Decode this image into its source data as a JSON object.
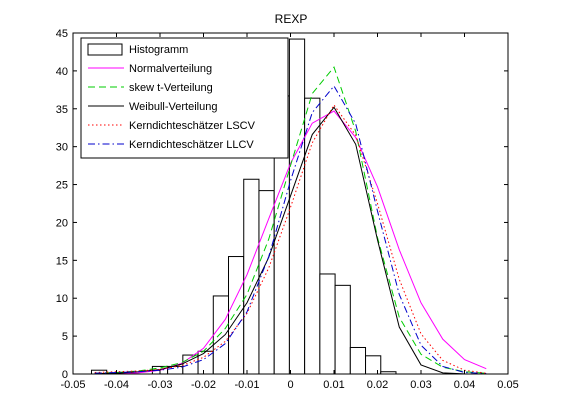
{
  "chart_data": {
    "type": "bar",
    "title": "REXP",
    "xlabel": "",
    "ylabel": "",
    "xlim": [
      -0.05,
      0.05
    ],
    "ylim": [
      0,
      45
    ],
    "xticks": [
      -0.05,
      -0.04,
      -0.03,
      -0.02,
      -0.01,
      0,
      0.01,
      0.02,
      0.03,
      0.04,
      0.05
    ],
    "xtick_labels": [
      "-0.05",
      "-0.04",
      "-0.03",
      "-0.02",
      "-0.01",
      "0",
      "0.01",
      "0.02",
      "0.03",
      "0.04",
      "0.05"
    ],
    "yticks": [
      0,
      5,
      10,
      15,
      20,
      25,
      30,
      35,
      40,
      45
    ],
    "ytick_labels": [
      "0",
      "5",
      "10",
      "15",
      "20",
      "25",
      "30",
      "35",
      "40",
      "45"
    ],
    "grid": false,
    "legend_position": "top-left",
    "histogram": {
      "name": "Histogramm",
      "bin_width": 0.0035,
      "bin_centers": [
        -0.0475,
        -0.044,
        -0.0405,
        -0.037,
        -0.0335,
        -0.03,
        -0.0265,
        -0.023,
        -0.0195,
        -0.016,
        -0.0125,
        -0.009,
        -0.0055,
        -0.002,
        0.0015,
        0.005,
        0.0085,
        0.012,
        0.0155,
        0.019,
        0.0225,
        0.026,
        0.0295,
        0.033,
        0.0365,
        0.04,
        0.0435
      ],
      "values": [
        0,
        0.5,
        0,
        0,
        0,
        1,
        1,
        2.5,
        3,
        10.3,
        15.5,
        25.7,
        24.2,
        36.7,
        44.2,
        36.4,
        13.2,
        11.7,
        3.5,
        2.4,
        0.3,
        0,
        0,
        0,
        0,
        0,
        0
      ]
    },
    "series": [
      {
        "name": "Normalverteilung",
        "style": "solid",
        "color": "#ff00ff",
        "x": [
          -0.045,
          -0.04,
          -0.035,
          -0.03,
          -0.025,
          -0.02,
          -0.015,
          -0.01,
          -0.005,
          0,
          0.005,
          0.01,
          0.015,
          0.02,
          0.025,
          0.03,
          0.035,
          0.04,
          0.045
        ],
        "y": [
          0.01,
          0.04,
          0.15,
          0.5,
          1.4,
          3.4,
          7.2,
          13.1,
          20.5,
          27.8,
          33.1,
          34.7,
          31.2,
          24.7,
          16.4,
          9.4,
          4.6,
          1.9,
          0.7
        ]
      },
      {
        "name": "skew t-Verteilung",
        "style": "dashed",
        "color": "#00cc00",
        "x": [
          -0.045,
          -0.04,
          -0.035,
          -0.03,
          -0.025,
          -0.02,
          -0.015,
          -0.01,
          -0.005,
          0,
          0.005,
          0.01,
          0.015,
          0.02,
          0.025,
          0.03,
          0.035,
          0.04,
          0.045
        ],
        "y": [
          0.1,
          0.2,
          0.4,
          0.8,
          1.5,
          3.0,
          6.0,
          10.5,
          17.8,
          27.5,
          37.0,
          40.5,
          32.0,
          18.0,
          7.5,
          2.6,
          0.9,
          0.3,
          0.1
        ]
      },
      {
        "name": "Weibull-Verteilung",
        "style": "solid",
        "color": "#000000",
        "x": [
          -0.045,
          -0.04,
          -0.035,
          -0.03,
          -0.025,
          -0.02,
          -0.015,
          -0.01,
          -0.005,
          0,
          0.005,
          0.01,
          0.015,
          0.02,
          0.025,
          0.03,
          0.035,
          0.04,
          0.045
        ],
        "y": [
          0.05,
          0.1,
          0.3,
          0.6,
          1.3,
          2.7,
          5.2,
          9.4,
          15.4,
          23.5,
          31.6,
          35.2,
          30.3,
          17.7,
          6.2,
          1.2,
          0.15,
          0.02,
          0.0
        ]
      },
      {
        "name": "Kerndichteschätzer LSCV",
        "style": "dotted",
        "color": "#ff0000",
        "x": [
          -0.045,
          -0.04,
          -0.035,
          -0.03,
          -0.025,
          -0.02,
          -0.015,
          -0.01,
          -0.005,
          0,
          0.005,
          0.01,
          0.015,
          0.02,
          0.025,
          0.03,
          0.035,
          0.04,
          0.045
        ],
        "y": [
          0.2,
          0.3,
          0.4,
          0.6,
          1.1,
          2.2,
          4.3,
          8.0,
          14.0,
          22.0,
          30.5,
          35.5,
          31.5,
          22.5,
          12.5,
          5.3,
          1.8,
          0.5,
          0.1
        ]
      },
      {
        "name": "Kerndichteschätzer LLCV",
        "style": "dashdot",
        "color": "#0000cc",
        "x": [
          -0.045,
          -0.04,
          -0.035,
          -0.03,
          -0.025,
          -0.02,
          -0.015,
          -0.01,
          -0.005,
          0,
          0.005,
          0.01,
          0.015,
          0.02,
          0.025,
          0.03,
          0.035,
          0.04,
          0.045
        ],
        "y": [
          0.1,
          0.2,
          0.3,
          0.5,
          0.9,
          1.9,
          4.0,
          8.2,
          15.5,
          25.5,
          34.5,
          38.0,
          33.0,
          21.5,
          10.5,
          3.8,
          1.0,
          0.2,
          0.05
        ]
      }
    ]
  }
}
